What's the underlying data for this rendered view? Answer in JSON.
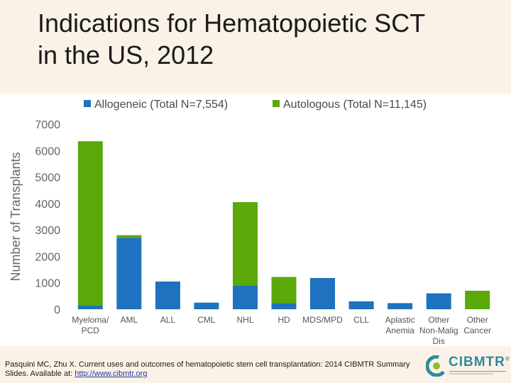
{
  "slide": {
    "title_line1": "Indications for Hematopoietic SCT",
    "title_line2": "in the US, 2012"
  },
  "colors": {
    "allogeneic": "#1f72bf",
    "autologous": "#5aa80a",
    "gridline": "#d9d9d9",
    "title_bg": "#fbf2e7"
  },
  "chart_data": {
    "type": "bar",
    "stacked": true,
    "categories": [
      [
        "Myeloma/",
        "PCD"
      ],
      [
        "AML"
      ],
      [
        "ALL"
      ],
      [
        "CML"
      ],
      [
        "NHL"
      ],
      [
        "HD"
      ],
      [
        "MDS/MPD"
      ],
      [
        "CLL"
      ],
      [
        "Aplastic",
        "Anemia"
      ],
      [
        "Other",
        "Non-Malig",
        "Dis"
      ],
      [
        "Other",
        "Cancer"
      ]
    ],
    "series": [
      {
        "name": "Allogeneic (Total N=7,554)",
        "color_key": "allogeneic",
        "values": [
          150,
          2700,
          1050,
          250,
          900,
          230,
          1180,
          300,
          230,
          600,
          0
        ]
      },
      {
        "name": "Autologous (Total N=11,145)",
        "color_key": "autologous",
        "values": [
          6200,
          100,
          0,
          0,
          3150,
          990,
          0,
          0,
          0,
          0,
          700
        ]
      }
    ],
    "title": "",
    "xlabel": "",
    "ylabel": "Number of Transplants",
    "yticks": [
      0,
      1000,
      2000,
      3000,
      4000,
      5000,
      6000,
      7000
    ],
    "ylim": [
      0,
      7000
    ],
    "grid": false,
    "legend_position": "top"
  },
  "footer": {
    "citation_text": "Pasquini MC, Zhu X. Current uses and outcomes of hematopoietic stem cell transplantation: 2014 CIBMTR Summary Slides. Available at: ",
    "citation_link": "http://www.cibmtr.org",
    "logo_text": "CIBMTR",
    "logo_mark": "®"
  }
}
